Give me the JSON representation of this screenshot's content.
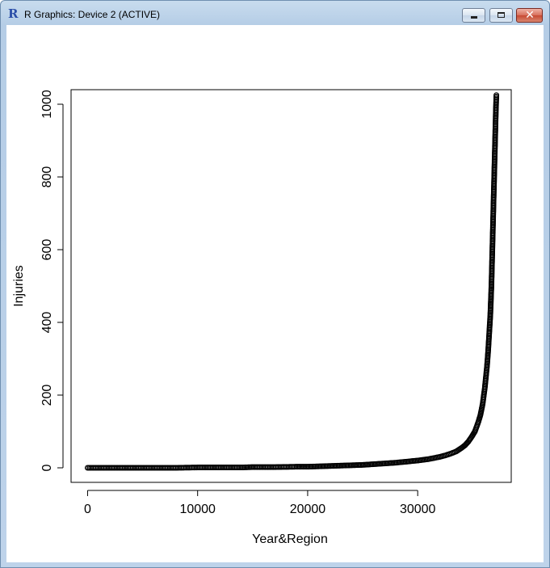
{
  "window": {
    "title": "R Graphics: Device 2 (ACTIVE)",
    "app_icon": "R",
    "buttons": [
      "minimize-icon",
      "maximize-icon",
      "close-icon"
    ]
  },
  "chart_data": {
    "type": "scatter",
    "title": "",
    "xlabel": "Year&Region",
    "ylabel": "Injuries",
    "xlim": [
      -1500,
      38500
    ],
    "ylim": [
      -40,
      1040
    ],
    "x_ticks": [
      0,
      10000,
      20000,
      30000
    ],
    "x_tick_labels": [
      "0",
      "10000",
      "20000",
      "30000"
    ],
    "y_ticks": [
      0,
      200,
      400,
      600,
      800,
      1000
    ],
    "y_tick_labels": [
      "0",
      "200",
      "400",
      "600",
      "800",
      "1000"
    ],
    "grid": false,
    "marker": "open-circle",
    "point_color": "#000000",
    "series": [
      {
        "x": [
          0,
          2000,
          4000,
          6000,
          8000,
          10000,
          12000,
          14000,
          15000,
          17000,
          19000,
          20000,
          21000,
          22000,
          23000,
          24000,
          25000,
          26000,
          27000,
          28000,
          29000,
          30000,
          30500,
          31000,
          31500,
          32000,
          32500,
          33000,
          33500,
          34000,
          34300,
          34600,
          34900,
          35200,
          35500,
          35700,
          35900,
          36100,
          36300,
          36400,
          36500,
          36600,
          36650,
          36700,
          36750,
          36800,
          36850,
          36900,
          36950,
          37000,
          37050,
          37100,
          37150
        ],
        "values": [
          0,
          0,
          0,
          0,
          0,
          1,
          1,
          1,
          2,
          2,
          3,
          3,
          4,
          5,
          6,
          7,
          8,
          10,
          12,
          14,
          17,
          20,
          22,
          24,
          27,
          30,
          34,
          39,
          45,
          55,
          62,
          72,
          85,
          100,
          125,
          145,
          175,
          220,
          280,
          320,
          370,
          420,
          460,
          500,
          560,
          620,
          680,
          740,
          800,
          860,
          920,
          980,
          1025
        ]
      }
    ]
  }
}
